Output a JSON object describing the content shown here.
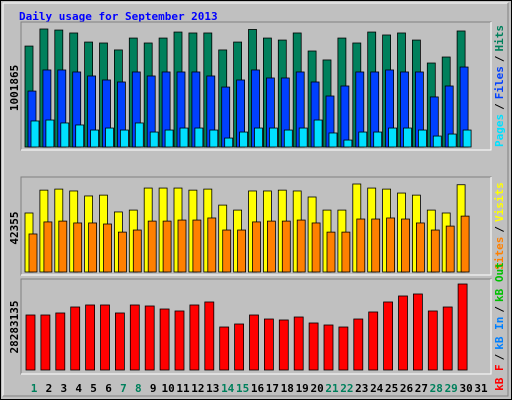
{
  "title": "Daily usage for September 2013",
  "legend_separator": "/",
  "chart_data": [
    {
      "type": "bar",
      "ylim": [
        0,
        1001865
      ],
      "series": [
        {
          "name": "Pages",
          "color": "#00e0ff",
          "values": [
            221000,
            229000,
            204000,
            187000,
            144000,
            161000,
            144000,
            204000,
            127000,
            144000,
            161000,
            161000,
            144000,
            76000,
            127000,
            161000,
            161000,
            144000,
            161000,
            229000,
            119000,
            59000,
            127000,
            127000,
            161000,
            161000,
            144000,
            93000,
            110000,
            144000,
            null
          ]
        },
        {
          "name": "Files",
          "color": "#0040ff",
          "values": [
            475000,
            654000,
            654000,
            637000,
            603000,
            569000,
            552000,
            637000,
            603000,
            637000,
            637000,
            637000,
            603000,
            509000,
            569000,
            654000,
            586000,
            586000,
            637000,
            552000,
            433000,
            518000,
            637000,
            637000,
            654000,
            637000,
            637000,
            425000,
            518000,
            679000,
            null
          ]
        },
        {
          "name": "Hits",
          "color": "#00805c",
          "values": [
            857000,
            1001865,
            993000,
            968000,
            891000,
            883000,
            824000,
            925000,
            883000,
            925000,
            976000,
            968000,
            968000,
            824000,
            891000,
            998000,
            925000,
            908000,
            968000,
            815000,
            739000,
            925000,
            883000,
            976000,
            951000,
            968000,
            908000,
            713000,
            764000,
            985000,
            null
          ]
        }
      ]
    },
    {
      "type": "bar",
      "ylim": [
        0,
        42355
      ],
      "series": [
        {
          "name": "Sites",
          "color": "#ff8000",
          "values": [
            18300,
            24100,
            24500,
            23600,
            23600,
            23100,
            19200,
            20200,
            24500,
            24500,
            25000,
            25000,
            26000,
            20200,
            20200,
            24100,
            24500,
            24500,
            25000,
            23600,
            19200,
            19200,
            25500,
            25500,
            26000,
            25500,
            23600,
            20200,
            22100,
            26900,
            null
          ]
        },
        {
          "name": "Visits",
          "color": "#ffff00",
          "values": [
            28400,
            39400,
            39900,
            39000,
            36600,
            37000,
            28900,
            29800,
            40400,
            40400,
            40400,
            39400,
            39900,
            32200,
            29800,
            39000,
            39000,
            39400,
            39000,
            36100,
            29800,
            29800,
            42355,
            40400,
            39900,
            38000,
            37000,
            29800,
            28400,
            42000,
            null
          ]
        }
      ]
    },
    {
      "type": "bar",
      "ylim": [
        0,
        28283135
      ],
      "categories": [
        "1",
        "2",
        "3",
        "4",
        "5",
        "6",
        "7",
        "8",
        "9",
        "10",
        "11",
        "12",
        "13",
        "14",
        "15",
        "16",
        "17",
        "18",
        "19",
        "20",
        "21",
        "22",
        "23",
        "24",
        "25",
        "26",
        "27",
        "28",
        "29",
        "30",
        "31"
      ],
      "category_colors": [
        "#00805c",
        "#000000",
        "#000000",
        "#000000",
        "#000000",
        "#000000",
        "#00805c",
        "#00805c",
        "#000000",
        "#000000",
        "#000000",
        "#000000",
        "#000000",
        "#00805c",
        "#00805c",
        "#000000",
        "#000000",
        "#000000",
        "#000000",
        "#000000",
        "#00805c",
        "#00805c",
        "#000000",
        "#000000",
        "#000000",
        "#000000",
        "#000000",
        "#00805c",
        "#00805c",
        "#000000",
        "#000000"
      ],
      "series": [
        {
          "name": "kB F",
          "color": "#ff0000",
          "values": [
            18090000,
            18090000,
            18750000,
            20720000,
            21380000,
            21380000,
            18750000,
            21380000,
            21050000,
            20060000,
            19410000,
            21380000,
            22370000,
            14140000,
            15130000,
            18090000,
            16770000,
            16450000,
            17430000,
            15460000,
            14800000,
            14140000,
            16770000,
            19080000,
            22370000,
            24340000,
            25000000,
            19410000,
            20720000,
            28283135,
            null
          ]
        }
      ],
      "extra_legend": [
        {
          "name": "kB In",
          "color": "#0080ff"
        },
        {
          "name": "kB Out",
          "color": "#00c000"
        }
      ]
    }
  ]
}
